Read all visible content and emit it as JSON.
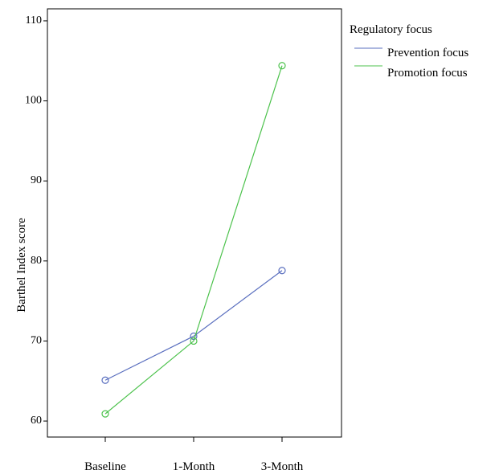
{
  "chart_data": {
    "type": "line",
    "title": "",
    "xlabel": "",
    "ylabel": "Barthel Index score",
    "categories": [
      "Baseline",
      "1-Month",
      "3-Month"
    ],
    "yticks": [
      60,
      70,
      80,
      90,
      100,
      110
    ],
    "ylim": [
      58,
      111.5
    ],
    "grid": false,
    "legend": {
      "title": "Regulatory focus",
      "placement": "right"
    },
    "series": [
      {
        "name": "Prevention focus",
        "color": "#5a6fbf",
        "values": [
          65.1,
          70.6,
          78.8
        ]
      },
      {
        "name": "Promotion focus",
        "color": "#4cc24c",
        "values": [
          60.9,
          70.0,
          104.4
        ]
      }
    ]
  }
}
